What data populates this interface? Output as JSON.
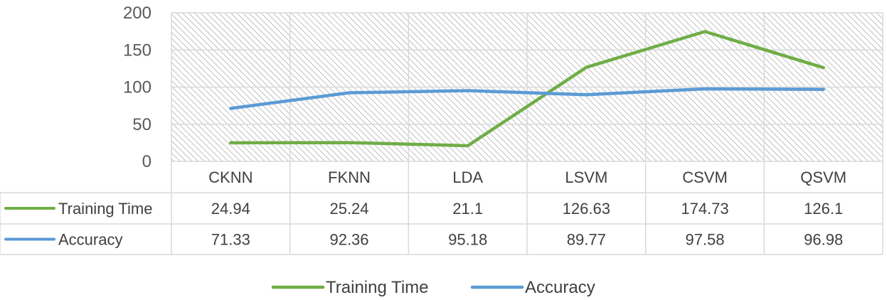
{
  "chart_data": {
    "type": "line",
    "categories": [
      "CKNN",
      "FKNN",
      "LDA",
      "LSVM",
      "CSVM",
      "QSVM"
    ],
    "series": [
      {
        "name": "Training Time",
        "values": [
          24.94,
          25.24,
          21.1,
          126.63,
          174.73,
          126.1
        ],
        "color": "#70ad47"
      },
      {
        "name": "Accuracy",
        "values": [
          71.33,
          92.36,
          95.18,
          89.77,
          97.58,
          96.98
        ],
        "color": "#5b9bd5"
      }
    ],
    "ylim": [
      0,
      200
    ],
    "yticks": [
      "0",
      "50",
      "100",
      "150",
      "200"
    ],
    "table_values": [
      [
        "24.94",
        "25.24",
        "21.1",
        "126.63",
        "174.73",
        "126.1"
      ],
      [
        "71.33",
        "92.36",
        "95.18",
        "89.77",
        "97.58",
        "96.98"
      ]
    ],
    "grid": true,
    "plot_background": "hatched",
    "legend": "bottom",
    "data_table": true
  }
}
